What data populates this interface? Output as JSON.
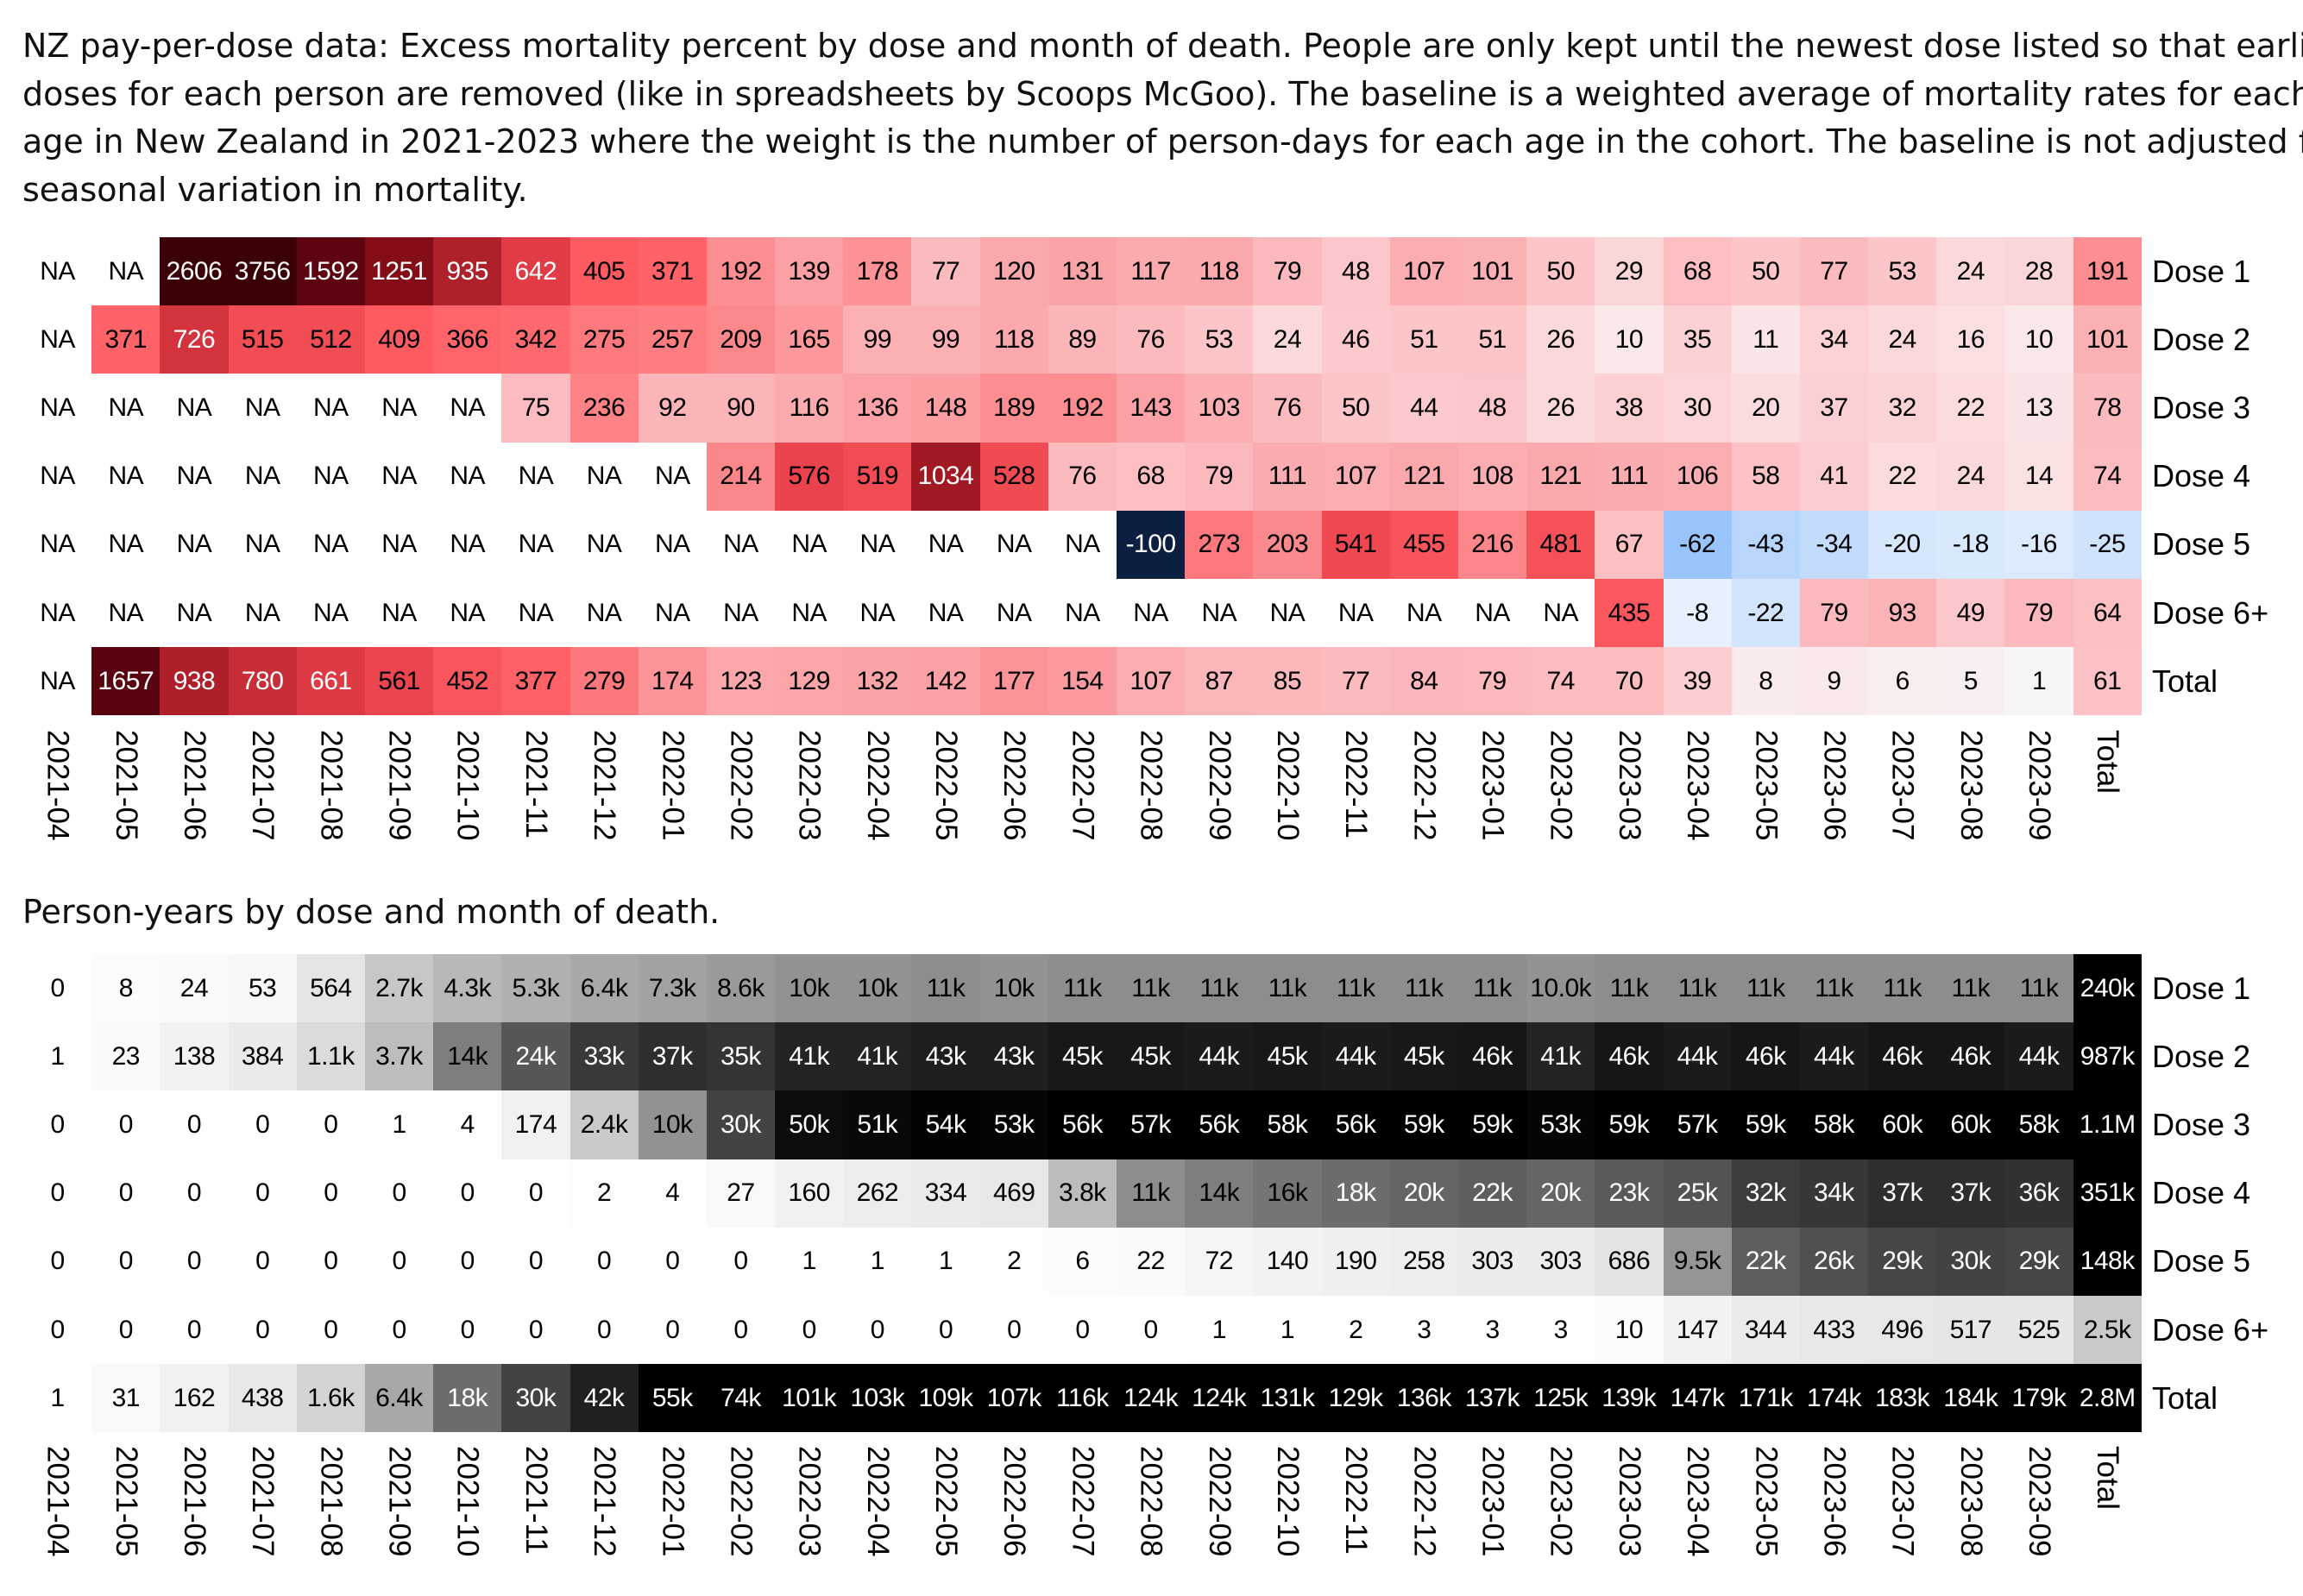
{
  "title_lines": [
    "NZ pay-per-dose data: Excess mortality percent by dose and month of death. People are only kept until the newest dose listed so that earlier",
    "doses for each person are removed (like in spreadsheets by Scoops McGoo). The baseline is a weighted average of mortality rates for each",
    "age in New Zealand in 2021-2023 where the weight is the number of person-days for each age in the cohort. The baseline is not adjusted for",
    "seasonal variation in mortality."
  ],
  "chart_data": [
    {
      "type": "heatmap",
      "title": "NZ pay-per-dose data: Excess mortality percent by dose and month of death.",
      "columns": [
        "2021-04",
        "2021-05",
        "2021-06",
        "2021-07",
        "2021-08",
        "2021-09",
        "2021-10",
        "2021-11",
        "2021-12",
        "2022-01",
        "2022-02",
        "2022-03",
        "2022-04",
        "2022-05",
        "2022-06",
        "2022-07",
        "2022-08",
        "2022-09",
        "2022-10",
        "2022-11",
        "2022-12",
        "2023-01",
        "2023-02",
        "2023-03",
        "2023-04",
        "2023-05",
        "2023-06",
        "2023-07",
        "2023-08",
        "2023-09",
        "Total"
      ],
      "rows": [
        {
          "label": "Dose 1",
          "values": [
            "NA",
            "NA",
            2606,
            3756,
            1592,
            1251,
            935,
            642,
            405,
            371,
            192,
            139,
            178,
            77,
            120,
            131,
            117,
            118,
            79,
            48,
            107,
            101,
            50,
            29,
            68,
            50,
            77,
            53,
            24,
            28,
            191
          ]
        },
        {
          "label": "Dose 2",
          "values": [
            "NA",
            371,
            726,
            515,
            512,
            409,
            366,
            342,
            275,
            257,
            209,
            165,
            99,
            99,
            118,
            89,
            76,
            53,
            24,
            46,
            51,
            51,
            26,
            10,
            35,
            11,
            34,
            24,
            16,
            10,
            101
          ]
        },
        {
          "label": "Dose 3",
          "values": [
            "NA",
            "NA",
            "NA",
            "NA",
            "NA",
            "NA",
            "NA",
            75,
            236,
            92,
            90,
            116,
            136,
            148,
            189,
            192,
            143,
            103,
            76,
            50,
            44,
            48,
            26,
            38,
            30,
            20,
            37,
            32,
            22,
            13,
            78
          ]
        },
        {
          "label": "Dose 4",
          "values": [
            "NA",
            "NA",
            "NA",
            "NA",
            "NA",
            "NA",
            "NA",
            "NA",
            "NA",
            "NA",
            214,
            576,
            519,
            1034,
            528,
            76,
            68,
            79,
            111,
            107,
            121,
            108,
            121,
            111,
            106,
            58,
            41,
            22,
            24,
            14,
            74
          ]
        },
        {
          "label": "Dose 5",
          "values": [
            "NA",
            "NA",
            "NA",
            "NA",
            "NA",
            "NA",
            "NA",
            "NA",
            "NA",
            "NA",
            "NA",
            "NA",
            "NA",
            "NA",
            "NA",
            "NA",
            -100,
            273,
            203,
            541,
            455,
            216,
            481,
            67,
            -62,
            -43,
            -34,
            -20,
            -18,
            -16,
            -25
          ]
        },
        {
          "label": "Dose 6+",
          "values": [
            "NA",
            "NA",
            "NA",
            "NA",
            "NA",
            "NA",
            "NA",
            "NA",
            "NA",
            "NA",
            "NA",
            "NA",
            "NA",
            "NA",
            "NA",
            "NA",
            "NA",
            "NA",
            "NA",
            "NA",
            "NA",
            "NA",
            "NA",
            435,
            -8,
            -22,
            79,
            93,
            49,
            79,
            64
          ]
        },
        {
          "label": "Total",
          "values": [
            "NA",
            1657,
            938,
            780,
            661,
            561,
            452,
            377,
            279,
            174,
            123,
            129,
            132,
            142,
            177,
            154,
            107,
            87,
            85,
            77,
            84,
            79,
            74,
            70,
            39,
            8,
            9,
            6,
            5,
            1,
            61
          ]
        }
      ],
      "colors": {
        "positive_max": "#3a0006",
        "positive_mid": "#ff5c62",
        "zero": "#f7f7f7",
        "negative_mid": "#98c4fb",
        "negative_max": "#0d1f40",
        "na": "#ffffff"
      }
    },
    {
      "type": "heatmap",
      "title": "Person-years by dose and month of death.",
      "columns": [
        "2021-04",
        "2021-05",
        "2021-06",
        "2021-07",
        "2021-08",
        "2021-09",
        "2021-10",
        "2021-11",
        "2021-12",
        "2022-01",
        "2022-02",
        "2022-03",
        "2022-04",
        "2022-05",
        "2022-06",
        "2022-07",
        "2022-08",
        "2022-09",
        "2022-10",
        "2022-11",
        "2022-12",
        "2023-01",
        "2023-02",
        "2023-03",
        "2023-04",
        "2023-05",
        "2023-06",
        "2023-07",
        "2023-08",
        "2023-09",
        "Total"
      ],
      "rows": [
        {
          "label": "Dose 1",
          "values": [
            "0",
            "8",
            "24",
            "53",
            "564",
            "2.7k",
            "4.3k",
            "5.3k",
            "6.4k",
            "7.3k",
            "8.6k",
            "10k",
            "10k",
            "11k",
            "10k",
            "11k",
            "11k",
            "11k",
            "11k",
            "11k",
            "11k",
            "11k",
            "10.0k",
            "11k",
            "11k",
            "11k",
            "11k",
            "11k",
            "11k",
            "11k",
            "240k"
          ]
        },
        {
          "label": "Dose 2",
          "values": [
            "1",
            "23",
            "138",
            "384",
            "1.1k",
            "3.7k",
            "14k",
            "24k",
            "33k",
            "37k",
            "35k",
            "41k",
            "41k",
            "43k",
            "43k",
            "45k",
            "45k",
            "44k",
            "45k",
            "44k",
            "45k",
            "46k",
            "41k",
            "46k",
            "44k",
            "46k",
            "44k",
            "46k",
            "46k",
            "44k",
            "987k"
          ]
        },
        {
          "label": "Dose 3",
          "values": [
            "0",
            "0",
            "0",
            "0",
            "0",
            "1",
            "4",
            "174",
            "2.4k",
            "10k",
            "30k",
            "50k",
            "51k",
            "54k",
            "53k",
            "56k",
            "57k",
            "56k",
            "58k",
            "56k",
            "59k",
            "59k",
            "53k",
            "59k",
            "57k",
            "59k",
            "58k",
            "60k",
            "60k",
            "58k",
            "1.1M"
          ]
        },
        {
          "label": "Dose 4",
          "values": [
            "0",
            "0",
            "0",
            "0",
            "0",
            "0",
            "0",
            "0",
            "2",
            "4",
            "27",
            "160",
            "262",
            "334",
            "469",
            "3.8k",
            "11k",
            "14k",
            "16k",
            "18k",
            "20k",
            "22k",
            "20k",
            "23k",
            "25k",
            "32k",
            "34k",
            "37k",
            "37k",
            "36k",
            "351k"
          ]
        },
        {
          "label": "Dose 5",
          "values": [
            "0",
            "0",
            "0",
            "0",
            "0",
            "0",
            "0",
            "0",
            "0",
            "0",
            "0",
            "1",
            "1",
            "1",
            "2",
            "6",
            "22",
            "72",
            "140",
            "190",
            "258",
            "303",
            "303",
            "686",
            "9.5k",
            "22k",
            "26k",
            "29k",
            "30k",
            "29k",
            "148k"
          ]
        },
        {
          "label": "Dose 6+",
          "values": [
            "0",
            "0",
            "0",
            "0",
            "0",
            "0",
            "0",
            "0",
            "0",
            "0",
            "0",
            "0",
            "0",
            "0",
            "0",
            "0",
            "0",
            "1",
            "1",
            "2",
            "3",
            "3",
            "3",
            "10",
            "147",
            "344",
            "433",
            "496",
            "517",
            "525",
            "2.5k"
          ]
        },
        {
          "label": "Total",
          "values": [
            "1",
            "31",
            "162",
            "438",
            "1.6k",
            "6.4k",
            "18k",
            "30k",
            "42k",
            "55k",
            "74k",
            "101k",
            "103k",
            "109k",
            "107k",
            "116k",
            "124k",
            "124k",
            "131k",
            "129k",
            "136k",
            "137k",
            "125k",
            "139k",
            "147k",
            "171k",
            "174k",
            "183k",
            "184k",
            "179k",
            "2.8M"
          ]
        }
      ],
      "colors": {
        "low": "#ffffff",
        "high": "#000000"
      }
    }
  ]
}
